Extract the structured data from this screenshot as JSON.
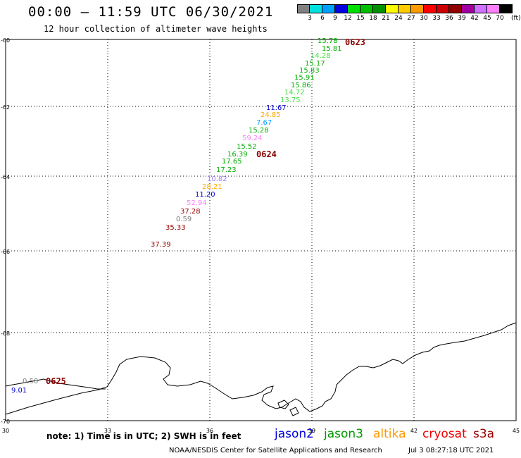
{
  "header": {
    "title": "00:00 — 11:59 UTC 06/30/2021",
    "subtitle": "12 hour collection of altimeter wave heights"
  },
  "colorbar": {
    "colors": [
      "#808080",
      "#00e0e0",
      "#00a0ff",
      "#0000e0",
      "#00e000",
      "#00c000",
      "#009000",
      "#ffff00",
      "#ffcc00",
      "#ff9900",
      "#ff0000",
      "#cc0000",
      "#900000",
      "#a000a0",
      "#d070ff",
      "#ff80ff",
      "#000000"
    ],
    "labels": [
      "3",
      "6",
      "9",
      "12",
      "15",
      "18",
      "21",
      "24",
      "27",
      "30",
      "33",
      "36",
      "39",
      "42",
      "45",
      "70"
    ],
    "unit": "(ft)"
  },
  "axes": {
    "x_ticks": [
      "30",
      "33",
      "36",
      "39",
      "42",
      "45"
    ],
    "y_ticks": [
      "-60",
      "-62",
      "-64",
      "-66",
      "-68",
      "-70"
    ]
  },
  "observations": [
    {
      "value": "15.78",
      "color": "#00b000"
    },
    {
      "value": "15.81",
      "color": "#00b000"
    },
    {
      "value": "14.28",
      "color": "#44dd44"
    },
    {
      "value": "15.17",
      "color": "#00b000"
    },
    {
      "value": "15.83",
      "color": "#00b000"
    },
    {
      "value": "15.91",
      "color": "#00b000"
    },
    {
      "value": "15.86",
      "color": "#00b000"
    },
    {
      "value": "14.72",
      "color": "#44dd44"
    },
    {
      "value": "13.75",
      "color": "#44dd44"
    },
    {
      "value": "11.67",
      "color": "#0000cc"
    },
    {
      "value": "24.85",
      "color": "#ffaa00"
    },
    {
      "value": "7.67",
      "color": "#00a0ff"
    },
    {
      "value": "15.28",
      "color": "#00b000"
    },
    {
      "value": "59.24",
      "color": "#ff80ff"
    },
    {
      "value": "15.52",
      "color": "#00b000"
    },
    {
      "value": "16.39",
      "color": "#00b000"
    },
    {
      "value": "17.65",
      "color": "#00b000"
    },
    {
      "value": "17.23",
      "color": "#00b000"
    },
    {
      "value": "10.82",
      "color": "#a080ff"
    },
    {
      "value": "28.21",
      "color": "#ffaa00"
    },
    {
      "value": "11.20",
      "color": "#0000cc"
    },
    {
      "value": "52.94",
      "color": "#ff80ff"
    },
    {
      "value": "37.28",
      "color": "#990000"
    },
    {
      "value": "0.59",
      "color": "#808080"
    },
    {
      "value": "35.33",
      "color": "#990000"
    },
    {
      "value": "37.39",
      "color": "#990000"
    },
    {
      "value": "0.58",
      "color": "#808080"
    },
    {
      "value": "9.01",
      "color": "#0000cc"
    }
  ],
  "time_labels": [
    "0623",
    "0624",
    "0625"
  ],
  "footnote": "note: 1) Time is in UTC; 2) SWH is in feet",
  "legend": [
    {
      "name": "jason2",
      "color": "#0000dd"
    },
    {
      "name": "jason3",
      "color": "#009900"
    },
    {
      "name": "altika",
      "color": "#ff9900"
    },
    {
      "name": "cryosat",
      "color": "#ee0000"
    },
    {
      "name": "s3a",
      "color": "#990000"
    }
  ],
  "credit": "NOAA/NESDIS Center for Satellite Applications and Research",
  "timestamp": "Jul  3 08:27:18 UTC 2021"
}
